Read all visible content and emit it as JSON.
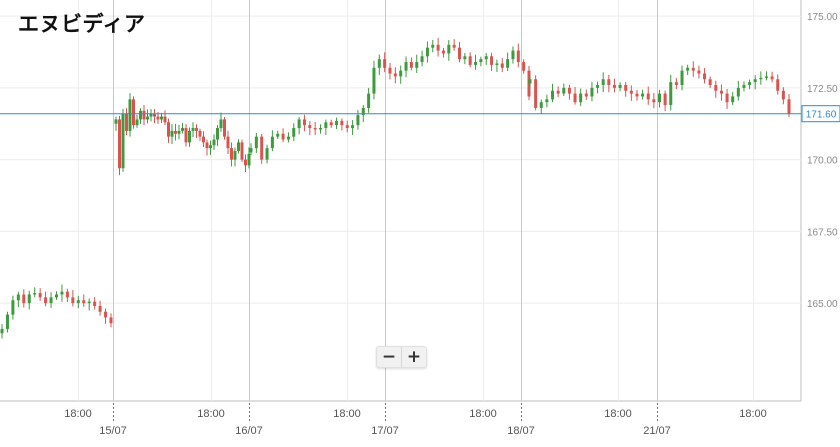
{
  "chart_data": {
    "type": "candlestick",
    "title": "エヌビディア",
    "y_ticks": [
      "175.00",
      "172.50",
      "170.00",
      "167.50",
      "165.00"
    ],
    "y_tick_values": [
      175.0,
      172.5,
      170.0,
      167.5,
      165.0
    ],
    "ylim": [
      162.6,
      175.3
    ],
    "x_labels": [
      {
        "label": "18:00",
        "major": false
      },
      {
        "label": "15/07",
        "major": true
      },
      {
        "label": "18:00",
        "major": false
      },
      {
        "label": "16/07",
        "major": true
      },
      {
        "label": "18:00",
        "major": false
      },
      {
        "label": "17/07",
        "major": true
      },
      {
        "label": "18:00",
        "major": false
      },
      {
        "label": "18/07",
        "major": true
      },
      {
        "label": "18:00",
        "major": false
      },
      {
        "label": "21/07",
        "major": true
      },
      {
        "label": "18:00",
        "major": false
      }
    ],
    "current_price": 171.6,
    "current_price_label": "171.60",
    "up_color": "#3d9a3d",
    "down_color": "#d9534f",
    "price_line_color": "#2a8cd4",
    "sessions": [
      {
        "from": "",
        "points": [
          164.1,
          164.6,
          165.1,
          165.3,
          165.0,
          165.3,
          165.35,
          165.2,
          165.0,
          165.2,
          165.3,
          165.4,
          165.2,
          165.0,
          165.1,
          165.0,
          165.05,
          164.9,
          164.7,
          164.5,
          164.3
        ]
      },
      {
        "from": "15/07",
        "points": [
          171.4,
          169.7,
          171.6,
          171.0,
          172.1,
          171.2,
          171.4,
          171.7,
          171.4,
          171.5,
          171.6,
          171.5,
          171.4,
          171.5,
          171.3,
          170.8,
          171.0,
          170.9,
          171.0,
          171.1,
          170.6,
          171.0,
          171.1,
          171.0,
          170.8,
          170.6,
          170.4,
          170.5,
          170.7,
          171.1,
          171.4,
          170.8,
          170.4,
          170.0,
          170.3,
          170.6,
          170.0,
          169.8,
          170.2
        ]
      },
      {
        "from": "16/07",
        "points": [
          170.4,
          170.8,
          170.0,
          170.4,
          170.8,
          170.9,
          170.7,
          170.8,
          171.1,
          171.4,
          171.2,
          171.1,
          171.05,
          171.1,
          171.3,
          171.2,
          171.35,
          171.2,
          171.1,
          171.2,
          171.55,
          171.8,
          172.3,
          173.2,
          173.5,
          173.2,
          173.0,
          172.9,
          173.1,
          173.4,
          173.2,
          173.4,
          173.6,
          173.9,
          174.0,
          173.8,
          173.7,
          174.0,
          173.9,
          173.5,
          173.6,
          173.3,
          173.4,
          173.5,
          173.6,
          173.3,
          173.35,
          173.2,
          173.5,
          173.8,
          173.4,
          173.1,
          172.2
        ]
      },
      {
        "from": "18/07",
        "points": [
          172.8,
          171.8,
          172.0,
          172.1,
          172.4,
          172.3,
          172.5,
          172.3,
          172.0,
          172.3,
          172.2,
          172.5,
          172.6,
          172.8,
          172.6,
          172.5,
          172.6,
          172.4,
          172.3,
          172.2,
          172.3,
          172.1,
          172.0,
          172.3,
          171.9,
          172.7,
          172.6,
          173.1,
          173.2,
          173.1,
          173.0,
          172.8,
          172.6,
          172.4,
          172.3,
          172.0,
          172.2,
          172.5,
          172.6,
          172.7,
          172.8,
          172.85,
          172.9,
          172.8,
          172.4,
          172.1,
          171.6
        ]
      }
    ]
  }
}
